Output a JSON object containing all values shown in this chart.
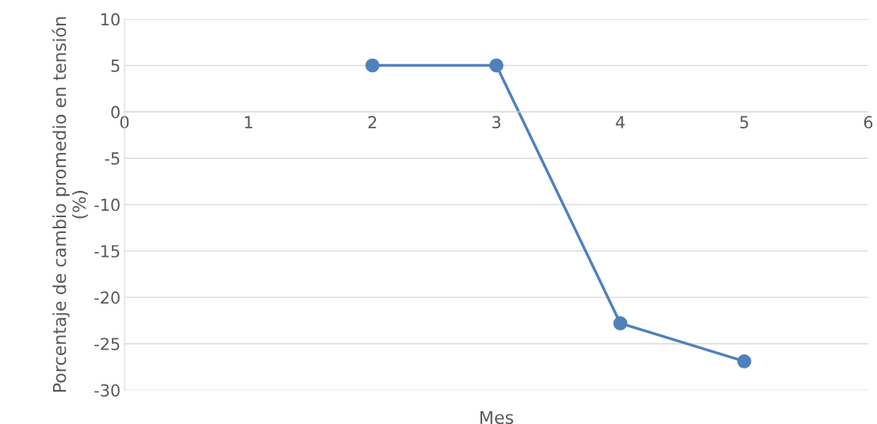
{
  "chart_data": {
    "type": "line",
    "xlabel": "Mes",
    "ylabel": "Porcentaje de cambio promedio en tensión (%)",
    "x": [
      2,
      3,
      4,
      5
    ],
    "series": [
      {
        "color": "#4f81bd",
        "values": [
          5,
          5,
          -22.8,
          -26.9
        ]
      }
    ],
    "xlim": [
      0,
      6
    ],
    "xticks": [
      0,
      1,
      2,
      3,
      4,
      5,
      6
    ],
    "ylim": [
      -30,
      10
    ],
    "yticks": [
      -30,
      -25,
      -20,
      -15,
      -10,
      -5,
      0,
      5,
      10
    ],
    "grid": "y",
    "marker": "circle",
    "line_style": "solid"
  }
}
